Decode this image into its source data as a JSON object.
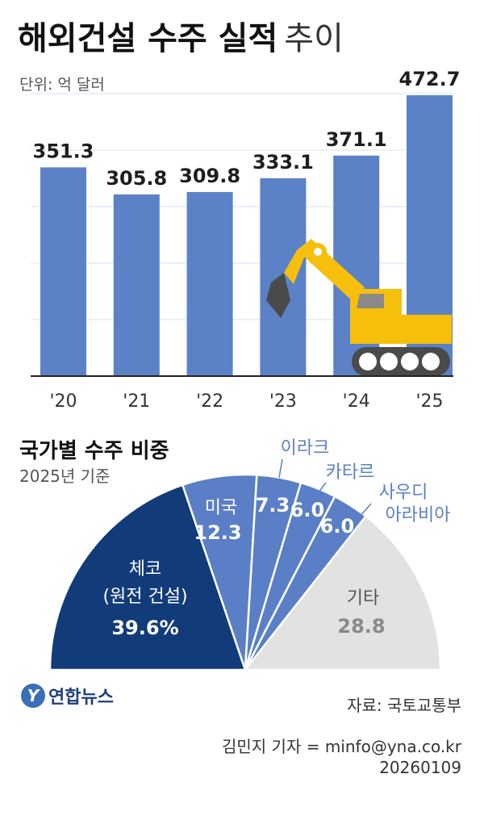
{
  "title": {
    "bold": "해외건설 수주 실적",
    "light": "추이"
  },
  "unit": "단위: 억 달러",
  "colors": {
    "bar": "#5b82c6",
    "navy": "#123b7a",
    "blue": "#5a7fc6",
    "grey": "#e2e2e2",
    "excavator": "#f6bf0c",
    "dark": "#4a4a4a"
  },
  "chart_data": [
    {
      "type": "bar",
      "categories": [
        "'20",
        "'21",
        "'22",
        "'23",
        "'24",
        "'25"
      ],
      "values": [
        351.3,
        305.8,
        309.8,
        333.1,
        371.1,
        472.7
      ],
      "value_labels": [
        "351.3",
        "305.8",
        "309.8",
        "333.1",
        "371.1",
        "472.7"
      ],
      "title": "해외건설 수주 실적 추이",
      "ylabel": "단위: 억 달러",
      "ylim": [
        0,
        472.7
      ],
      "grid": true
    },
    {
      "type": "pie",
      "shape": "semicircle",
      "title": "국가별 수주 비중",
      "subtitle": "2025년 기준",
      "slices": [
        {
          "name": "체코",
          "sub": "(원전 건설)",
          "value": 39.6,
          "label": "39.6%"
        },
        {
          "name": "미국",
          "value": 12.3,
          "label": "12.3"
        },
        {
          "name": "이라크",
          "value": 7.3,
          "label": "7.3"
        },
        {
          "name": "카타르",
          "value": 6.0,
          "label": "6.0"
        },
        {
          "name": "사우디 아라비아",
          "value": 6.0,
          "label": "6.0"
        },
        {
          "name": "기타",
          "value": 28.8,
          "label": "28.8"
        }
      ]
    }
  ],
  "pie_title": "국가별 수주 비중",
  "pie_subtitle": "2025년 기준",
  "logo": {
    "mark": "Y",
    "text": "연합뉴스"
  },
  "source": "자료: 국토교통부",
  "credit": {
    "reporter": "김민지 기자 = minfo@yna.co.kr",
    "date": "20260109"
  }
}
